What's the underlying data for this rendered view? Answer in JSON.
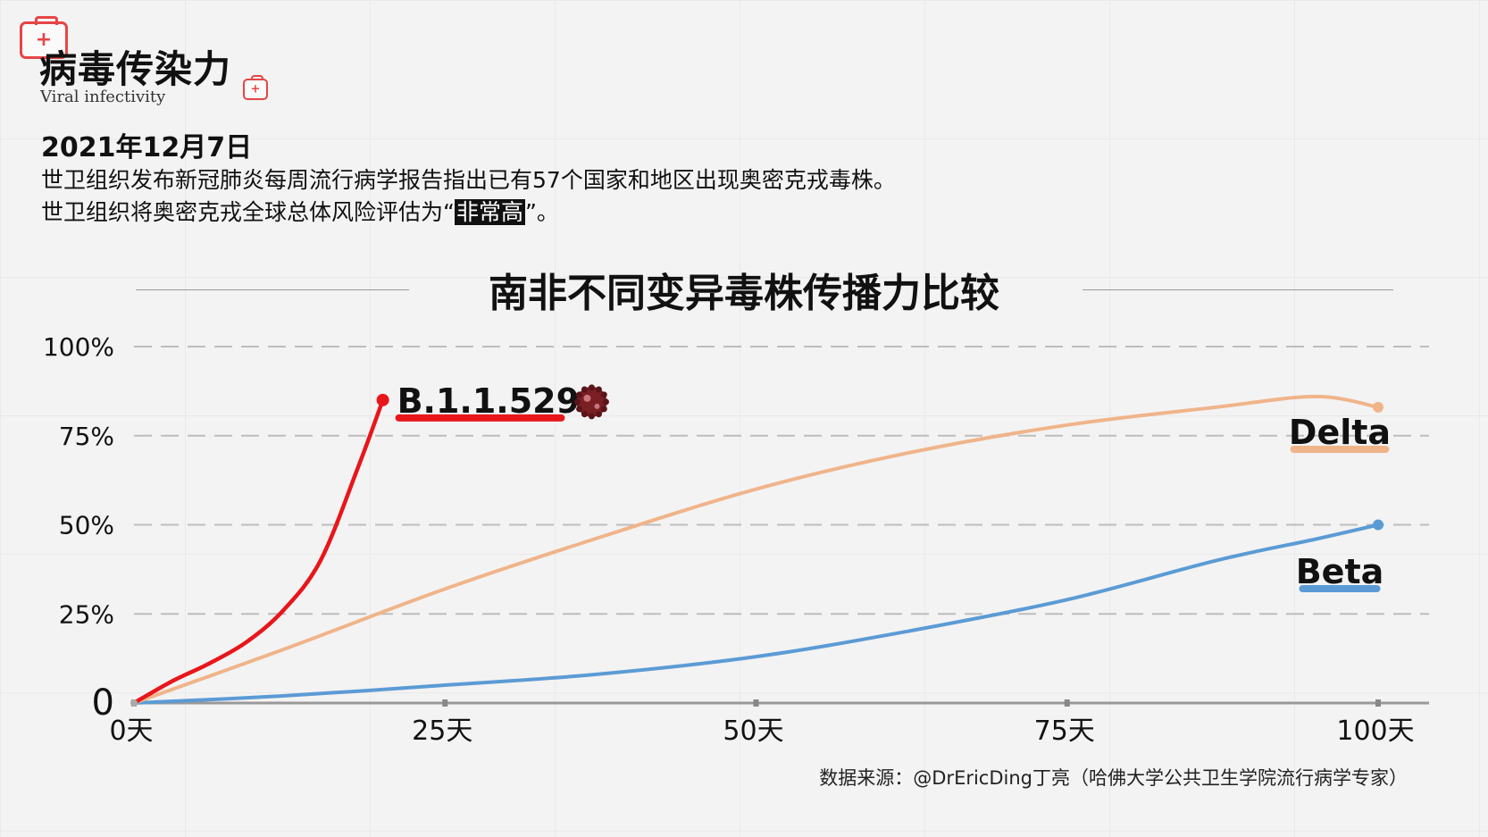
{
  "header": {
    "title": "病毒传染力",
    "subtitle": "Viral infectivity",
    "date": "2021年12月7日",
    "line1": "世卫组织发布新冠肺炎每周流行病学报告指出已有57个国家和地区出现奥密克戎毒株。",
    "line2_before": "世卫组织将奥密克戎全球总体风险评估为“",
    "line2_highlight": "非常高",
    "line2_after": "”。"
  },
  "chart_data": {
    "type": "line",
    "title": "南非不同变异毒株传播力比较",
    "x_ticks": [
      "0天",
      "25天",
      "50天",
      "75天",
      "100天"
    ],
    "y_ticks": [
      "0",
      "25%",
      "50%",
      "75%",
      "100%"
    ],
    "xlim": [
      0,
      100
    ],
    "ylim": [
      0,
      100
    ],
    "grid": "horizontal dashed",
    "series": [
      {
        "name": "B.1.1.529",
        "color": "#e8161b",
        "points": [
          [
            0,
            0
          ],
          [
            3,
            6
          ],
          [
            6,
            11
          ],
          [
            9,
            17
          ],
          [
            12,
            26
          ],
          [
            15,
            40
          ],
          [
            18,
            66
          ],
          [
            20,
            85
          ]
        ]
      },
      {
        "name": "Delta",
        "color": "#f0b48a",
        "points": [
          [
            0,
            0
          ],
          [
            12,
            15
          ],
          [
            25,
            32
          ],
          [
            37,
            46
          ],
          [
            50,
            60
          ],
          [
            62,
            70
          ],
          [
            75,
            78
          ],
          [
            87,
            83
          ],
          [
            95,
            86
          ],
          [
            100,
            83
          ]
        ]
      },
      {
        "name": "Beta",
        "color": "#5b9bd5",
        "points": [
          [
            0,
            0
          ],
          [
            12,
            2
          ],
          [
            25,
            5
          ],
          [
            37,
            8
          ],
          [
            50,
            13
          ],
          [
            62,
            20
          ],
          [
            75,
            29
          ],
          [
            87,
            40
          ],
          [
            95,
            46
          ],
          [
            100,
            50
          ]
        ]
      }
    ]
  },
  "source": "数据来源：@DrEricDing丁亮（哈佛大学公共卫生学院流行病学专家）"
}
